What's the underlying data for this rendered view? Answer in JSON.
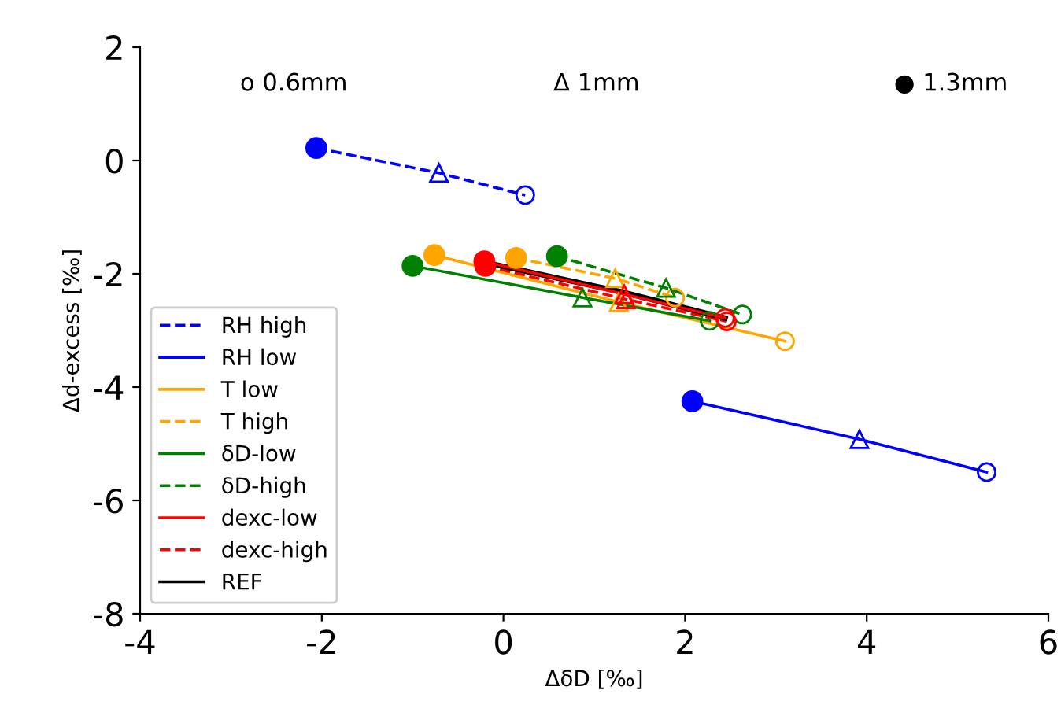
{
  "chart_data": {
    "type": "line",
    "xlabel": "ΔδD [‰]",
    "ylabel": "Δd-excess [‰]",
    "xlim": [
      -4,
      6
    ],
    "ylim": [
      -8,
      2
    ],
    "xticks": [
      -4,
      -2,
      0,
      2,
      4,
      6
    ],
    "yticks": [
      -8,
      -6,
      -4,
      -2,
      0,
      2
    ],
    "grid": false,
    "legend": "lower left",
    "annotations": [
      "o 0.6mm",
      "Δ 1mm",
      "● 1.3mm"
    ],
    "series": [
      {
        "name": "RH high",
        "color": "#0000ff",
        "line_style": "dashed",
        "marker": "circle",
        "x": [
          -2.06,
          -0.71,
          0.24
        ],
        "values": [
          0.22,
          -0.22,
          -0.61
        ]
      },
      {
        "name": "RH low",
        "color": "#0000ff",
        "line_style": "solid",
        "marker": "circle",
        "x": [
          2.08,
          3.92,
          5.32
        ],
        "values": [
          -4.25,
          -4.92,
          -5.5
        ]
      },
      {
        "name": "T low",
        "color": "#ffa500",
        "line_style": "solid",
        "marker": "circle",
        "x": [
          -0.76,
          1.27,
          3.1
        ],
        "values": [
          -1.67,
          -2.5,
          -3.19
        ]
      },
      {
        "name": "T high",
        "color": "#ffa500",
        "line_style": "dashed",
        "marker": "circle",
        "x": [
          0.14,
          1.23,
          1.89
        ],
        "values": [
          -1.72,
          -2.08,
          -2.42
        ]
      },
      {
        "name": "δD-low",
        "color": "#008000",
        "line_style": "solid",
        "marker": "circle",
        "x": [
          -1.0,
          0.87,
          2.27
        ],
        "values": [
          -1.86,
          -2.42,
          -2.83
        ]
      },
      {
        "name": "δD-high",
        "color": "#008000",
        "line_style": "dashed",
        "marker": "circle",
        "x": [
          0.59,
          1.79,
          2.63
        ],
        "values": [
          -1.69,
          -2.25,
          -2.72
        ]
      },
      {
        "name": "dexc-low",
        "color": "#ff0000",
        "line_style": "solid",
        "marker": "circle",
        "x": [
          -0.21,
          1.33,
          2.44
        ],
        "values": [
          -1.78,
          -2.36,
          -2.78
        ]
      },
      {
        "name": "dexc-high",
        "color": "#ff0000",
        "line_style": "dashed",
        "marker": "circle",
        "x": [
          -0.2,
          1.35,
          2.46
        ],
        "values": [
          -1.86,
          -2.45,
          -2.84
        ]
      },
      {
        "name": "REF",
        "color": "#000000",
        "line_style": "solid",
        "x": [
          -0.2,
          1.33,
          2.44
        ],
        "values": [
          -1.8,
          -2.33,
          -2.78
        ]
      }
    ]
  }
}
